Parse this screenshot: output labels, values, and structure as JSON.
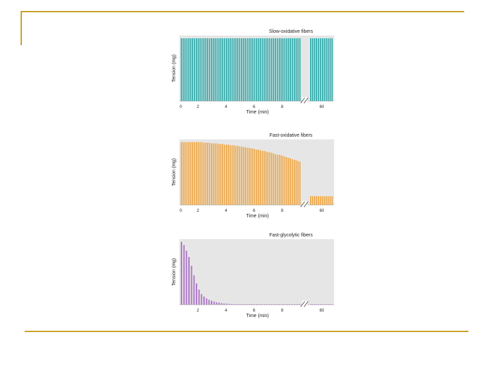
{
  "chart_data": [
    {
      "type": "bar",
      "title": "Slow-oxidative fibers",
      "xlabel": "Time (min)",
      "ylabel": "Tension (mg)",
      "xticks": [
        "0",
        "2",
        "4",
        "6",
        "8",
        "60"
      ],
      "color": "#17a3a3",
      "axis_break": true,
      "series": [
        {
          "segment": "0-8 min",
          "values": [
            1,
            1,
            1,
            1,
            1,
            1,
            1,
            1,
            1,
            1,
            1,
            1,
            1,
            1,
            1,
            1,
            1,
            1,
            1,
            1,
            1,
            1,
            1,
            1,
            1,
            1,
            1,
            1,
            1,
            1,
            1,
            1,
            1,
            1,
            1,
            1,
            1,
            1,
            1,
            1,
            1,
            1,
            1,
            1,
            1,
            1,
            1,
            1,
            1,
            1,
            1,
            1,
            1,
            1,
            1,
            1,
            1,
            1,
            1,
            1,
            1,
            1,
            1,
            1
          ]
        },
        {
          "segment": "60 min",
          "values": [
            1,
            1,
            1,
            1,
            1,
            1,
            1,
            1,
            1,
            1,
            1,
            1
          ]
        }
      ]
    },
    {
      "type": "bar",
      "title": "Fast-oxidative fibers",
      "xlabel": "Time (min)",
      "ylabel": "Tension (mg)",
      "xticks": [
        "0",
        "2",
        "4",
        "6",
        "8",
        "60"
      ],
      "color": "#f0a033",
      "axis_break": true,
      "series": [
        {
          "segment": "0-8 min",
          "values": [
            1.0,
            1.0,
            1.0,
            1.0,
            1.0,
            1.0,
            1.0,
            1.0,
            1.0,
            1.0,
            1.0,
            1.0,
            0.99,
            0.99,
            0.99,
            0.99,
            0.98,
            0.98,
            0.98,
            0.98,
            0.97,
            0.97,
            0.97,
            0.96,
            0.96,
            0.96,
            0.95,
            0.95,
            0.95,
            0.94,
            0.94,
            0.93,
            0.93,
            0.92,
            0.92,
            0.91,
            0.91,
            0.9,
            0.9,
            0.89,
            0.88,
            0.88,
            0.87,
            0.86,
            0.86,
            0.85,
            0.84,
            0.84,
            0.83,
            0.82,
            0.81,
            0.8,
            0.8,
            0.79,
            0.78,
            0.77,
            0.76,
            0.75,
            0.74,
            0.73,
            0.72,
            0.71,
            0.7,
            0.69
          ]
        },
        {
          "segment": "60 min",
          "values": [
            0.14,
            0.14,
            0.14,
            0.14,
            0.14,
            0.14,
            0.14,
            0.14,
            0.14,
            0.14,
            0.14,
            0.14
          ]
        }
      ]
    },
    {
      "type": "bar",
      "title": "Fast-glycolytic fibers",
      "xlabel": "Time (min)",
      "ylabel": "Tension (mg)",
      "xticks": [
        "2",
        "4",
        "6",
        "8",
        "60"
      ],
      "color": "#b07ac8",
      "axis_break": true,
      "series": [
        {
          "segment": "0-8 min",
          "values": [
            1.0,
            0.95,
            0.86,
            0.76,
            0.62,
            0.47,
            0.34,
            0.24,
            0.17,
            0.13,
            0.1,
            0.08,
            0.065,
            0.05,
            0.04,
            0.032,
            0.026,
            0.021,
            0.017,
            0.014,
            0.012,
            0.01,
            0.01,
            0.01,
            0.01,
            0.01,
            0.01,
            0.01,
            0.01,
            0.01,
            0.01,
            0.01,
            0.01,
            0.01,
            0.01,
            0.01,
            0.01,
            0.01,
            0.01,
            0.01,
            0.01,
            0.01,
            0.01,
            0.01,
            0.01,
            0.01,
            0.01,
            0.01
          ]
        },
        {
          "segment": "60 min",
          "values": [
            0.01,
            0.01,
            0.01,
            0.01,
            0.01,
            0.01,
            0.01,
            0.01,
            0.01,
            0.01,
            0.01,
            0.01
          ]
        }
      ]
    }
  ]
}
